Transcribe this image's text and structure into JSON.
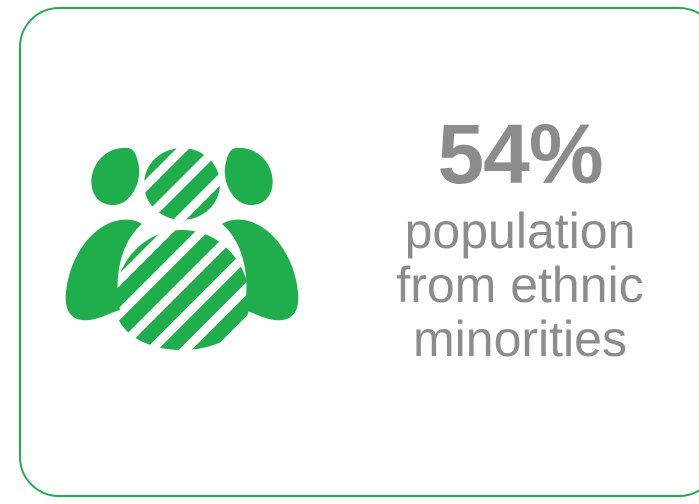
{
  "stat": {
    "value": "54%",
    "label": "population from ethnic minorities"
  },
  "icon": {
    "name": "people-group-icon"
  },
  "colors": {
    "accent": "#1fae4b",
    "text": "#8c8c8c",
    "background": "#ffffff"
  }
}
